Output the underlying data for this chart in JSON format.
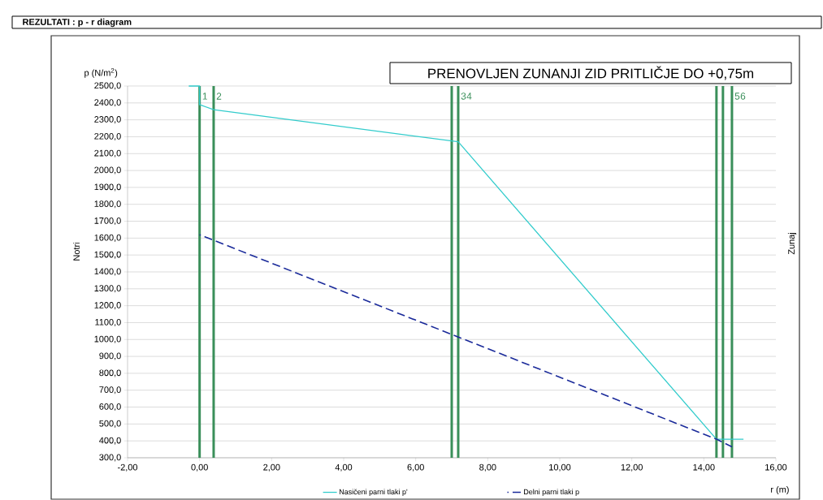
{
  "chart_data": {
    "type": "line",
    "title": "REZULTATI : p - r diagram",
    "subtitle": "PRENOVLJEN ZUNANJI ZID PRITLIČJE DO +0,75m",
    "xlabel": "r (m)",
    "ylabel": "p (N/m$^{2}$)",
    "annotations": [
      "Notri",
      "Zunaj",
      {
        "text": "1",
        "x": 0,
        "y": 2440
      },
      {
        "text": "2",
        "x": 0.39,
        "y": 2440
      },
      {
        "text": "3",
        "x": 7.0,
        "y": 2440
      },
      {
        "text": "4",
        "x": 7.18,
        "y": 2440
      },
      {
        "text": "5",
        "x": 14.35,
        "y": 2440
      },
      {
        "text": "6",
        "x": 14.53,
        "y": 2440
      }
    ],
    "xlim": [
      -2,
      16
    ],
    "xticks": [
      {
        "value": -2,
        "label": "-2,00"
      },
      {
        "value": 0,
        "label": "0,00"
      },
      {
        "value": 2,
        "label": "2,00"
      },
      {
        "value": 4,
        "label": "4,00"
      },
      {
        "value": 6,
        "label": "6,00"
      },
      {
        "value": 8,
        "label": "8,00"
      },
      {
        "value": 10,
        "label": "10,00"
      },
      {
        "value": 12,
        "label": "12,00"
      },
      {
        "value": 14,
        "label": "14,00"
      },
      {
        "value": 16,
        "label": "16,00"
      }
    ],
    "ylim": [
      300,
      2500
    ],
    "yticks": [
      {
        "value": 300,
        "label": "300,0"
      },
      {
        "value": 400,
        "label": "400,0"
      },
      {
        "value": 500,
        "label": "500,0"
      },
      {
        "value": 600,
        "label": "600,0"
      },
      {
        "value": 700,
        "label": "700,0"
      },
      {
        "value": 800,
        "label": "800,0"
      },
      {
        "value": 900,
        "label": "900,0"
      },
      {
        "value": 1000,
        "label": "1000,0"
      },
      {
        "value": 1100,
        "label": "1100,0"
      },
      {
        "value": 1200,
        "label": "1200,0"
      },
      {
        "value": 1300,
        "label": "1300,0"
      },
      {
        "value": 1400,
        "label": "1400,0"
      },
      {
        "value": 1500,
        "label": "1500,0"
      },
      {
        "value": 1600,
        "label": "1600,0"
      },
      {
        "value": 1700,
        "label": "1700,0"
      },
      {
        "value": 1800,
        "label": "1800,0"
      },
      {
        "value": 1900,
        "label": "1900,0"
      },
      {
        "value": 2000,
        "label": "2000,0"
      },
      {
        "value": 2100,
        "label": "2100,0"
      },
      {
        "value": 2200,
        "label": "2200,0"
      },
      {
        "value": 2300,
        "label": "2300,0"
      },
      {
        "value": 2400,
        "label": "2400,0"
      },
      {
        "value": 2500,
        "label": "2500,0"
      }
    ],
    "grid": "y",
    "legend": "bottom",
    "series": [
      {
        "name": "Nasičeni parni tlaki p'",
        "color": "#33cccc",
        "line_style": "solid",
        "x": [
          -0.3,
          0,
          0,
          0.39,
          7.18,
          14.35,
          15.1
        ],
        "values": [
          2500,
          2500,
          2390,
          2360,
          2170,
          410,
          410
        ]
      },
      {
        "name": "Delni parni tlaki p",
        "color": "#1a2a9a",
        "line_style": "dashed",
        "x": [
          0,
          7.18,
          14.35,
          14.78
        ],
        "values": [
          1620,
          1015,
          410,
          365
        ]
      }
    ],
    "ref_lines": [
      {
        "axis": "x",
        "value": 0,
        "color": "#3a8f5a"
      },
      {
        "axis": "x",
        "value": 0.39,
        "color": "#3a8f5a"
      },
      {
        "axis": "x",
        "value": 7.0,
        "color": "#3a8f5a"
      },
      {
        "axis": "x",
        "value": 7.18,
        "color": "#3a8f5a"
      },
      {
        "axis": "x",
        "value": 14.35,
        "color": "#3a8f5a"
      },
      {
        "axis": "x",
        "value": 14.53,
        "color": "#3a8f5a"
      },
      {
        "axis": "x",
        "value": 14.78,
        "color": "#3a8f5a"
      }
    ]
  }
}
